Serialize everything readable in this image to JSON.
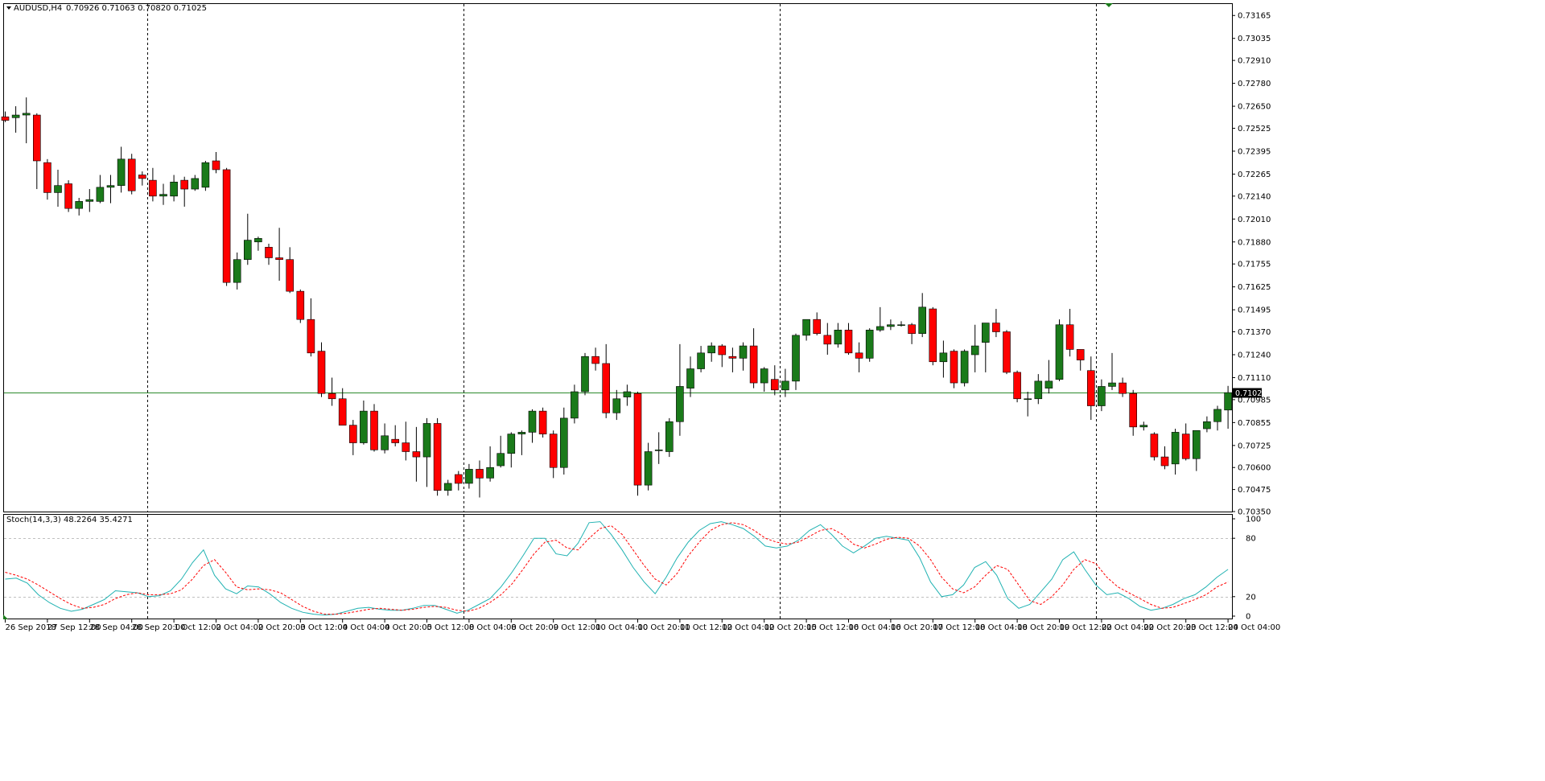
{
  "header": {
    "symbol_label": "AUDUSD,H4",
    "ohlc_text": "0.70926 0.71063 0.70820 0.71025"
  },
  "colors": {
    "bull": "#1a7a1a",
    "bear": "#ff0000",
    "wick": "#000000",
    "stoch_main": "#20b2b2",
    "stoch_signal": "#ff0000",
    "current_price_line": "#2d8a2d",
    "price_badge_bg": "#000000"
  },
  "chart_data": [
    {
      "type": "candlestick",
      "symbol": "AUDUSD",
      "timeframe": "H4",
      "ylim": [
        0.7035,
        0.7323
      ],
      "y_ticks": [
        "0.73165",
        "0.73035",
        "0.72910",
        "0.72780",
        "0.72650",
        "0.72525",
        "0.72395",
        "0.72265",
        "0.72140",
        "0.72010",
        "0.71880",
        "0.71755",
        "0.71625",
        "0.71495",
        "0.71370",
        "0.71240",
        "0.71110",
        "0.70985",
        "0.70855",
        "0.70725",
        "0.70600",
        "0.70475",
        "0.70350"
      ],
      "current_price": 0.71025,
      "current_price_label": "0.71025",
      "x_ticks": [
        "26 Sep 2018",
        "27 Sep 12:00",
        "28 Sep 04:00",
        "28 Sep 20:00",
        "1 Oct 12:00",
        "2 Oct 04:00",
        "2 Oct 20:00",
        "3 Oct 12:00",
        "4 Oct 04:00",
        "4 Oct 20:00",
        "5 Oct 12:00",
        "8 Oct 04:00",
        "8 Oct 20:00",
        "9 Oct 12:00",
        "10 Oct 04:00",
        "10 Oct 20:00",
        "11 Oct 12:00",
        "12 Oct 04:00",
        "12 Oct 20:00",
        "15 Oct 12:00",
        "16 Oct 04:00",
        "16 Oct 20:00",
        "17 Oct 12:00",
        "18 Oct 04:00",
        "18 Oct 20:00",
        "19 Oct 12:00",
        "22 Oct 04:00",
        "22 Oct 20:00",
        "23 Oct 12:00",
        "24 Oct 04:00"
      ],
      "day_separators_at_candle": [
        13,
        43,
        73,
        103
      ],
      "candles": [
        {
          "o": 0.7259,
          "h": 0.7262,
          "l": 0.7256,
          "c": 0.7257
        },
        {
          "o": 0.72585,
          "h": 0.7265,
          "l": 0.725,
          "c": 0.726
        },
        {
          "o": 0.726,
          "h": 0.727,
          "l": 0.7244,
          "c": 0.7261
        },
        {
          "o": 0.726,
          "h": 0.7261,
          "l": 0.7218,
          "c": 0.7234
        },
        {
          "o": 0.7233,
          "h": 0.7235,
          "l": 0.7212,
          "c": 0.7216
        },
        {
          "o": 0.7216,
          "h": 0.7229,
          "l": 0.7208,
          "c": 0.722
        },
        {
          "o": 0.7221,
          "h": 0.7223,
          "l": 0.7205,
          "c": 0.7207
        },
        {
          "o": 0.7207,
          "h": 0.7213,
          "l": 0.7203,
          "c": 0.7211
        },
        {
          "o": 0.7211,
          "h": 0.7218,
          "l": 0.7205,
          "c": 0.7212
        },
        {
          "o": 0.7211,
          "h": 0.7226,
          "l": 0.721,
          "c": 0.7219
        },
        {
          "o": 0.7219,
          "h": 0.7226,
          "l": 0.721,
          "c": 0.722
        },
        {
          "o": 0.722,
          "h": 0.7242,
          "l": 0.7216,
          "c": 0.7235
        },
        {
          "o": 0.7235,
          "h": 0.7238,
          "l": 0.7215,
          "c": 0.7217
        },
        {
          "o": 0.7226,
          "h": 0.7228,
          "l": 0.722,
          "c": 0.7224
        },
        {
          "o": 0.7223,
          "h": 0.723,
          "l": 0.7211,
          "c": 0.7214
        },
        {
          "o": 0.7214,
          "h": 0.7221,
          "l": 0.7209,
          "c": 0.7215
        },
        {
          "o": 0.7214,
          "h": 0.7226,
          "l": 0.7211,
          "c": 0.7222
        },
        {
          "o": 0.7223,
          "h": 0.7225,
          "l": 0.7208,
          "c": 0.7218
        },
        {
          "o": 0.7218,
          "h": 0.7226,
          "l": 0.7217,
          "c": 0.7224
        },
        {
          "o": 0.7219,
          "h": 0.7234,
          "l": 0.7217,
          "c": 0.7233
        },
        {
          "o": 0.7234,
          "h": 0.7239,
          "l": 0.7227,
          "c": 0.7229
        },
        {
          "o": 0.7229,
          "h": 0.723,
          "l": 0.7163,
          "c": 0.7165
        },
        {
          "o": 0.7165,
          "h": 0.7182,
          "l": 0.7161,
          "c": 0.7178
        },
        {
          "o": 0.7178,
          "h": 0.7204,
          "l": 0.7175,
          "c": 0.7189
        },
        {
          "o": 0.7188,
          "h": 0.7191,
          "l": 0.7183,
          "c": 0.719
        },
        {
          "o": 0.7185,
          "h": 0.7187,
          "l": 0.7175,
          "c": 0.7179
        },
        {
          "o": 0.7179,
          "h": 0.7196,
          "l": 0.7166,
          "c": 0.7178
        },
        {
          "o": 0.7178,
          "h": 0.7185,
          "l": 0.7159,
          "c": 0.716
        },
        {
          "o": 0.716,
          "h": 0.7161,
          "l": 0.7142,
          "c": 0.7144
        },
        {
          "o": 0.7144,
          "h": 0.7156,
          "l": 0.7123,
          "c": 0.7125
        },
        {
          "o": 0.7126,
          "h": 0.7131,
          "l": 0.71,
          "c": 0.7102
        },
        {
          "o": 0.7102,
          "h": 0.7111,
          "l": 0.7095,
          "c": 0.7099
        },
        {
          "o": 0.7099,
          "h": 0.7105,
          "l": 0.7084,
          "c": 0.7084
        },
        {
          "o": 0.7084,
          "h": 0.7087,
          "l": 0.7067,
          "c": 0.7074
        },
        {
          "o": 0.7074,
          "h": 0.7098,
          "l": 0.7073,
          "c": 0.7092
        },
        {
          "o": 0.7092,
          "h": 0.7096,
          "l": 0.7069,
          "c": 0.707
        },
        {
          "o": 0.707,
          "h": 0.7085,
          "l": 0.7068,
          "c": 0.7078
        },
        {
          "o": 0.7076,
          "h": 0.7084,
          "l": 0.7072,
          "c": 0.7074
        },
        {
          "o": 0.7074,
          "h": 0.7086,
          "l": 0.7064,
          "c": 0.7069
        },
        {
          "o": 0.7069,
          "h": 0.7083,
          "l": 0.7052,
          "c": 0.7066
        },
        {
          "o": 0.7066,
          "h": 0.7088,
          "l": 0.7049,
          "c": 0.7085
        },
        {
          "o": 0.7085,
          "h": 0.7088,
          "l": 0.7044,
          "c": 0.7047
        },
        {
          "o": 0.7047,
          "h": 0.7053,
          "l": 0.7044,
          "c": 0.7051
        },
        {
          "o": 0.7056,
          "h": 0.7058,
          "l": 0.7047,
          "c": 0.7051
        },
        {
          "o": 0.7051,
          "h": 0.7062,
          "l": 0.7048,
          "c": 0.7059
        },
        {
          "o": 0.7059,
          "h": 0.7064,
          "l": 0.7043,
          "c": 0.7054
        },
        {
          "o": 0.7054,
          "h": 0.7072,
          "l": 0.7052,
          "c": 0.706
        },
        {
          "o": 0.7061,
          "h": 0.7078,
          "l": 0.706,
          "c": 0.7068
        },
        {
          "o": 0.7068,
          "h": 0.708,
          "l": 0.706,
          "c": 0.7079
        },
        {
          "o": 0.7079,
          "h": 0.7081,
          "l": 0.7067,
          "c": 0.708
        },
        {
          "o": 0.708,
          "h": 0.7093,
          "l": 0.7074,
          "c": 0.7092
        },
        {
          "o": 0.7092,
          "h": 0.7094,
          "l": 0.7077,
          "c": 0.7079
        },
        {
          "o": 0.7079,
          "h": 0.7081,
          "l": 0.7054,
          "c": 0.706
        },
        {
          "o": 0.706,
          "h": 0.7094,
          "l": 0.7056,
          "c": 0.7088
        },
        {
          "o": 0.7088,
          "h": 0.7107,
          "l": 0.7085,
          "c": 0.7103
        },
        {
          "o": 0.7103,
          "h": 0.7125,
          "l": 0.7101,
          "c": 0.7123
        },
        {
          "o": 0.7123,
          "h": 0.7128,
          "l": 0.7115,
          "c": 0.7119
        },
        {
          "o": 0.7119,
          "h": 0.713,
          "l": 0.7088,
          "c": 0.7091
        },
        {
          "o": 0.7091,
          "h": 0.7104,
          "l": 0.7087,
          "c": 0.7099
        },
        {
          "o": 0.71,
          "h": 0.7107,
          "l": 0.7095,
          "c": 0.7103
        },
        {
          "o": 0.7102,
          "h": 0.7103,
          "l": 0.7044,
          "c": 0.705
        },
        {
          "o": 0.705,
          "h": 0.7074,
          "l": 0.7047,
          "c": 0.7069
        },
        {
          "o": 0.707,
          "h": 0.708,
          "l": 0.7062,
          "c": 0.707
        },
        {
          "o": 0.7069,
          "h": 0.7088,
          "l": 0.7066,
          "c": 0.7086
        },
        {
          "o": 0.7086,
          "h": 0.713,
          "l": 0.7078,
          "c": 0.7106
        },
        {
          "o": 0.7105,
          "h": 0.7123,
          "l": 0.71,
          "c": 0.7116
        },
        {
          "o": 0.7116,
          "h": 0.7129,
          "l": 0.7114,
          "c": 0.7125
        },
        {
          "o": 0.7125,
          "h": 0.7131,
          "l": 0.712,
          "c": 0.7129
        },
        {
          "o": 0.7129,
          "h": 0.713,
          "l": 0.7117,
          "c": 0.7124
        },
        {
          "o": 0.7123,
          "h": 0.7128,
          "l": 0.7114,
          "c": 0.7122
        },
        {
          "o": 0.7122,
          "h": 0.7131,
          "l": 0.7115,
          "c": 0.7129
        },
        {
          "o": 0.7129,
          "h": 0.7139,
          "l": 0.7105,
          "c": 0.7108
        },
        {
          "o": 0.7108,
          "h": 0.7117,
          "l": 0.7103,
          "c": 0.7116
        },
        {
          "o": 0.711,
          "h": 0.7118,
          "l": 0.7101,
          "c": 0.7104
        },
        {
          "o": 0.7104,
          "h": 0.7116,
          "l": 0.71,
          "c": 0.7109
        },
        {
          "o": 0.7109,
          "h": 0.7136,
          "l": 0.7104,
          "c": 0.7135
        },
        {
          "o": 0.7135,
          "h": 0.7144,
          "l": 0.7132,
          "c": 0.7144
        },
        {
          "o": 0.7144,
          "h": 0.7148,
          "l": 0.7135,
          "c": 0.7136
        },
        {
          "o": 0.7135,
          "h": 0.7142,
          "l": 0.7124,
          "c": 0.713
        },
        {
          "o": 0.713,
          "h": 0.7142,
          "l": 0.7128,
          "c": 0.7138
        },
        {
          "o": 0.7138,
          "h": 0.7142,
          "l": 0.7124,
          "c": 0.7125
        },
        {
          "o": 0.7125,
          "h": 0.7131,
          "l": 0.7114,
          "c": 0.7122
        },
        {
          "o": 0.7122,
          "h": 0.7139,
          "l": 0.712,
          "c": 0.7138
        },
        {
          "o": 0.7138,
          "h": 0.7151,
          "l": 0.7137,
          "c": 0.714
        },
        {
          "o": 0.714,
          "h": 0.7144,
          "l": 0.7138,
          "c": 0.7141
        },
        {
          "o": 0.7141,
          "h": 0.7143,
          "l": 0.714,
          "c": 0.7141
        },
        {
          "o": 0.7141,
          "h": 0.7142,
          "l": 0.713,
          "c": 0.7136
        },
        {
          "o": 0.7136,
          "h": 0.7159,
          "l": 0.7134,
          "c": 0.7151
        },
        {
          "o": 0.715,
          "h": 0.7151,
          "l": 0.7118,
          "c": 0.712
        },
        {
          "o": 0.712,
          "h": 0.7132,
          "l": 0.7111,
          "c": 0.7125
        },
        {
          "o": 0.7126,
          "h": 0.7127,
          "l": 0.7105,
          "c": 0.7108
        },
        {
          "o": 0.7108,
          "h": 0.7127,
          "l": 0.7106,
          "c": 0.7126
        },
        {
          "o": 0.7124,
          "h": 0.7141,
          "l": 0.7114,
          "c": 0.7129
        },
        {
          "o": 0.7131,
          "h": 0.7142,
          "l": 0.7114,
          "c": 0.7142
        },
        {
          "o": 0.7142,
          "h": 0.715,
          "l": 0.7134,
          "c": 0.7137
        },
        {
          "o": 0.7137,
          "h": 0.7138,
          "l": 0.7113,
          "c": 0.7114
        },
        {
          "o": 0.7114,
          "h": 0.7115,
          "l": 0.7097,
          "c": 0.7099
        },
        {
          "o": 0.7099,
          "h": 0.7103,
          "l": 0.7089,
          "c": 0.7099
        },
        {
          "o": 0.7099,
          "h": 0.7113,
          "l": 0.7096,
          "c": 0.7109
        },
        {
          "o": 0.7105,
          "h": 0.7121,
          "l": 0.7102,
          "c": 0.7109
        },
        {
          "o": 0.711,
          "h": 0.7144,
          "l": 0.7109,
          "c": 0.7141
        },
        {
          "o": 0.7141,
          "h": 0.715,
          "l": 0.7123,
          "c": 0.7127
        },
        {
          "o": 0.7127,
          "h": 0.7127,
          "l": 0.7115,
          "c": 0.7121
        },
        {
          "o": 0.7115,
          "h": 0.7123,
          "l": 0.7087,
          "c": 0.7095
        },
        {
          "o": 0.7095,
          "h": 0.711,
          "l": 0.7092,
          "c": 0.7106
        },
        {
          "o": 0.7106,
          "h": 0.7125,
          "l": 0.7104,
          "c": 0.7108
        },
        {
          "o": 0.7108,
          "h": 0.7111,
          "l": 0.71,
          "c": 0.7102
        },
        {
          "o": 0.7102,
          "h": 0.7104,
          "l": 0.7078,
          "c": 0.7083
        },
        {
          "o": 0.7083,
          "h": 0.7086,
          "l": 0.7081,
          "c": 0.7084
        },
        {
          "o": 0.7079,
          "h": 0.708,
          "l": 0.7064,
          "c": 0.7066
        },
        {
          "o": 0.7066,
          "h": 0.7072,
          "l": 0.7059,
          "c": 0.7061
        },
        {
          "o": 0.7062,
          "h": 0.7082,
          "l": 0.7056,
          "c": 0.708
        },
        {
          "o": 0.7079,
          "h": 0.7085,
          "l": 0.7064,
          "c": 0.7065
        },
        {
          "o": 0.7065,
          "h": 0.7081,
          "l": 0.7058,
          "c": 0.7081
        },
        {
          "o": 0.7082,
          "h": 0.7089,
          "l": 0.708,
          "c": 0.7086
        },
        {
          "o": 0.7086,
          "h": 0.7095,
          "l": 0.7081,
          "c": 0.7093
        },
        {
          "o": 0.70926,
          "h": 0.71063,
          "l": 0.7082,
          "c": 0.71025
        }
      ]
    },
    {
      "type": "line",
      "indicator": "Stoch(14,3,3)",
      "label": "Stoch(14,3,3) 48.2264 35.4271",
      "ylim": [
        0,
        100
      ],
      "y_ticks": [
        "100",
        "80",
        "20",
        "0"
      ],
      "levels": [
        20,
        80
      ],
      "series": [
        {
          "name": "main",
          "values": [
            38,
            39,
            34,
            22,
            14,
            8,
            5,
            7,
            12,
            17,
            26,
            25,
            24,
            20,
            21,
            26,
            38,
            55,
            68,
            42,
            28,
            23,
            31,
            30,
            23,
            14,
            8,
            4,
            2,
            1,
            2,
            5,
            8,
            9,
            7,
            6,
            6,
            8,
            11,
            11,
            7,
            3,
            6,
            12,
            18,
            30,
            45,
            62,
            80,
            80,
            64,
            62,
            75,
            96,
            97,
            84,
            68,
            50,
            35,
            23,
            40,
            60,
            76,
            88,
            95,
            97,
            94,
            90,
            82,
            72,
            70,
            72,
            78,
            88,
            94,
            84,
            72,
            65,
            72,
            80,
            82,
            80,
            78,
            60,
            35,
            20,
            22,
            32,
            50,
            56,
            42,
            18,
            8,
            12,
            25,
            38,
            58,
            66,
            48,
            32,
            22,
            24,
            18,
            10,
            6,
            8,
            12,
            18,
            22,
            30,
            40,
            48
          ]
        },
        {
          "name": "signal",
          "values": [
            45,
            42,
            38,
            32,
            25,
            18,
            12,
            8,
            9,
            12,
            18,
            22,
            24,
            22,
            22,
            23,
            27,
            38,
            52,
            58,
            45,
            30,
            27,
            28,
            27,
            24,
            17,
            10,
            5,
            2,
            2,
            3,
            5,
            7,
            8,
            7,
            6,
            7,
            9,
            10,
            9,
            6,
            5,
            8,
            14,
            22,
            33,
            48,
            64,
            76,
            78,
            70,
            68,
            80,
            90,
            93,
            84,
            68,
            52,
            38,
            32,
            44,
            62,
            76,
            88,
            94,
            96,
            94,
            88,
            80,
            76,
            74,
            76,
            82,
            88,
            90,
            84,
            74,
            70,
            74,
            79,
            81,
            80,
            72,
            58,
            40,
            28,
            24,
            30,
            42,
            52,
            48,
            32,
            16,
            12,
            20,
            32,
            48,
            58,
            54,
            40,
            30,
            24,
            18,
            12,
            8,
            9,
            13,
            17,
            22,
            30,
            35
          ]
        }
      ]
    }
  ]
}
